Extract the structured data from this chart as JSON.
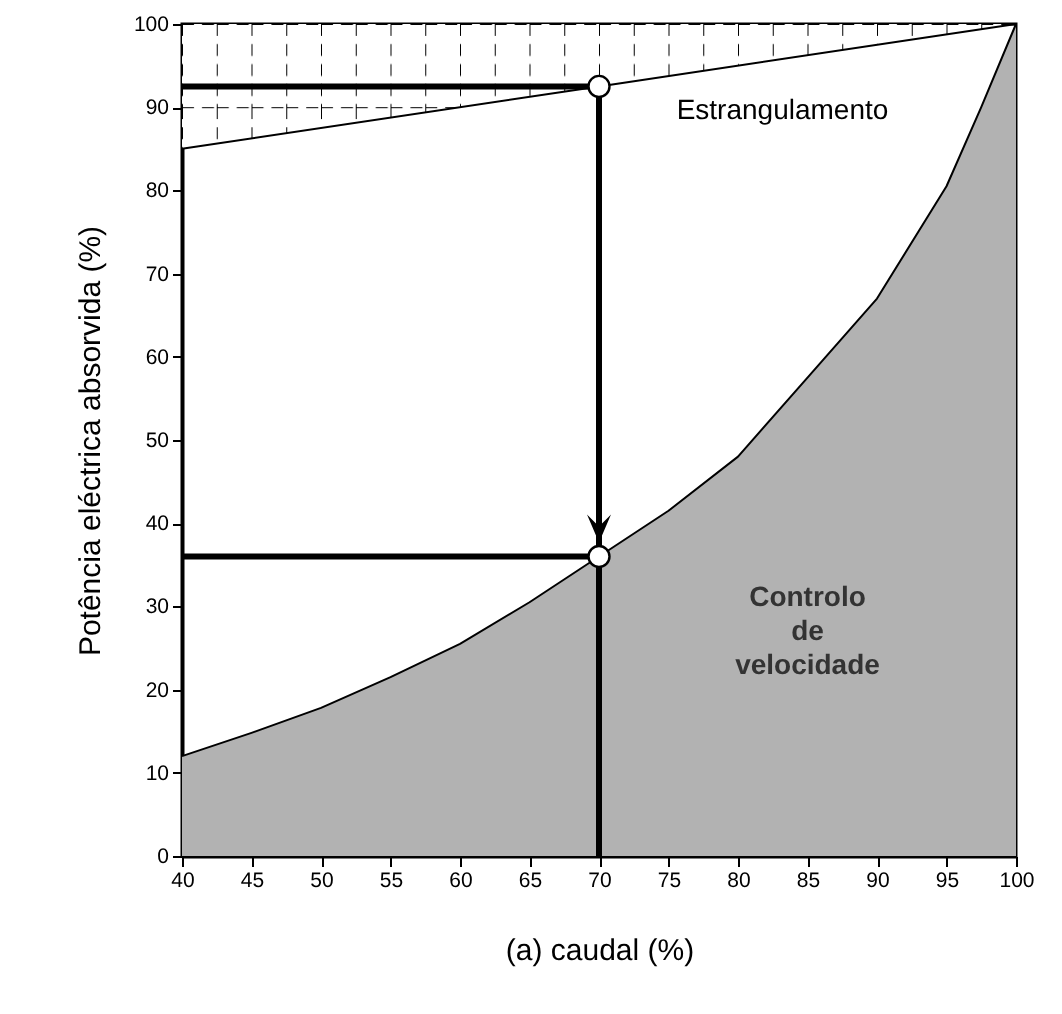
{
  "chart_data": {
    "type": "line",
    "xlabel": "(a) caudal (%)",
    "ylabel": "Potência eléctrica absorvida (%)",
    "xlim": [
      40,
      100
    ],
    "ylim": [
      0,
      100
    ],
    "xticks": [
      40,
      45,
      50,
      55,
      60,
      65,
      70,
      75,
      80,
      85,
      90,
      95,
      100
    ],
    "yticks": [
      0,
      10,
      20,
      30,
      40,
      50,
      60,
      70,
      80,
      90,
      100
    ],
    "series": [
      {
        "name": "Controlo de velocidade",
        "type": "area",
        "color": "#b2b2b2",
        "x": [
          40,
          45,
          50,
          55,
          60,
          65,
          70,
          75,
          80,
          85,
          90,
          95,
          97.5,
          100
        ],
        "values": [
          12,
          14.8,
          17.8,
          21.5,
          25.5,
          30.5,
          36,
          41.5,
          48,
          57.5,
          67,
          80.5,
          90,
          100
        ]
      },
      {
        "name": "Estrangulamento",
        "color": "#000000",
        "x": [
          40,
          70,
          100
        ],
        "values": [
          85,
          92.5,
          100
        ],
        "lower": [
          85,
          92.5,
          100
        ],
        "upper": [
          100,
          100,
          100
        ]
      },
      {
        "color": "#000000",
        "x": [
          40,
          70
        ],
        "values": [
          92.5,
          92.5
        ]
      },
      {
        "color": "#000000",
        "x": [
          70,
          70
        ],
        "values": [
          92.5,
          0
        ]
      },
      {
        "color": "#000000",
        "x": [
          40,
          70
        ],
        "values": [
          36,
          36
        ]
      },
      {
        "type": "scatter",
        "color": "#ffffff",
        "marker": "circle",
        "x": [
          70,
          70
        ],
        "values": [
          92.5,
          36
        ]
      }
    ]
  }
}
